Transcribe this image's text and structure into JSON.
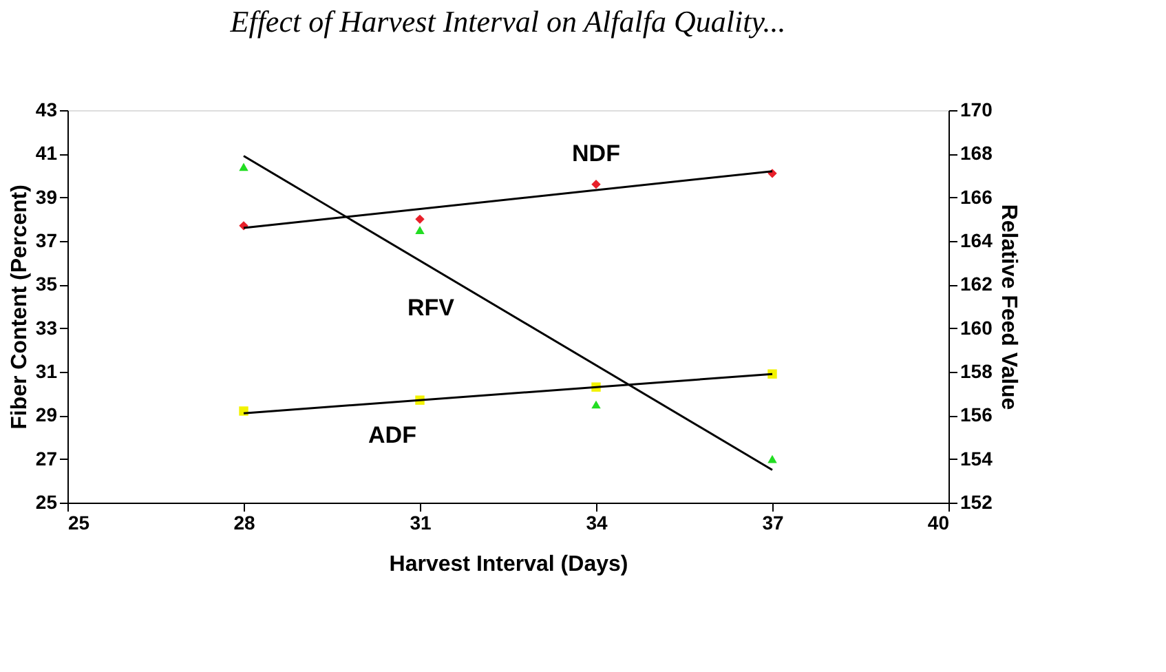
{
  "chart_data": {
    "type": "scatter",
    "title": "Effect of Harvest Interval on Alfalfa Quality...",
    "xlabel": "Harvest Interval (Days)",
    "ylabel": "Fiber Content (Percent)",
    "y2label": "Relative Feed Value",
    "xlim": [
      25,
      40
    ],
    "xticks": [
      25,
      28,
      31,
      34,
      37,
      40
    ],
    "ylim": [
      25,
      43
    ],
    "yticks": [
      25,
      27,
      29,
      31,
      33,
      35,
      37,
      39,
      41,
      43
    ],
    "y2lim": [
      152,
      170
    ],
    "y2ticks": [
      152,
      154,
      156,
      158,
      160,
      162,
      164,
      166,
      168,
      170
    ],
    "series": [
      {
        "name": "NDF",
        "marker": "diamond",
        "color": "#e8202a",
        "x": [
          28,
          31,
          34,
          37
        ],
        "values": [
          37.7,
          38.0,
          39.6,
          40.1
        ]
      },
      {
        "type": "line",
        "line_style": "solid",
        "marker": "none",
        "color": "#000000",
        "x": [
          28,
          37
        ],
        "values": [
          37.6,
          40.2
        ]
      },
      {
        "name": "ADF",
        "marker": "square",
        "color": "#f2f200",
        "x": [
          28,
          31,
          34,
          37
        ],
        "values": [
          29.2,
          29.7,
          30.3,
          30.9
        ]
      },
      {
        "type": "line",
        "line_style": "solid",
        "marker": "none",
        "color": "#000000",
        "x": [
          28,
          37
        ],
        "values": [
          29.1,
          30.9
        ]
      },
      {
        "name": "RFV",
        "marker": "triangle",
        "axis": "y2",
        "color": "#22dd22",
        "x": [
          28,
          31,
          34,
          37
        ],
        "values": [
          167.4,
          164.5,
          156.5,
          154.0
        ]
      },
      {
        "type": "line",
        "axis": "y2",
        "line_style": "solid",
        "marker": "none",
        "color": "#000000",
        "x": [
          28,
          37
        ],
        "values": [
          167.9,
          153.5
        ]
      }
    ]
  }
}
